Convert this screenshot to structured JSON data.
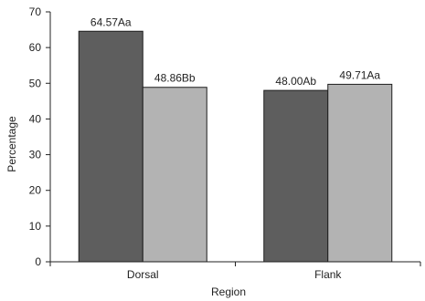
{
  "chart_data": {
    "type": "bar",
    "title": "",
    "xlabel": "Region",
    "ylabel": "Percentage",
    "ylim": [
      0,
      70
    ],
    "yticks": [
      0,
      10,
      20,
      30,
      40,
      50,
      60,
      70
    ],
    "categories": [
      "Dorsal",
      "Flank"
    ],
    "grid": false,
    "legend": "none",
    "series": [
      {
        "color": "#5e5e5e",
        "values": [
          64.57,
          48.0
        ],
        "labels": [
          "64.57Aa",
          "48.00Ab"
        ]
      },
      {
        "color": "#b3b3b3",
        "values": [
          48.86,
          49.71
        ],
        "labels": [
          "48.86Bb",
          "49.71Aa"
        ]
      }
    ]
  }
}
